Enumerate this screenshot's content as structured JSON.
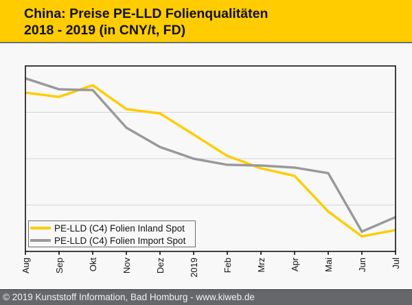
{
  "header": {
    "title_line1": "China: Preise PE-LLD Folienqualitäten",
    "title_line2": "2018 - 2019 (in CNY/t, FD)",
    "background_color": "#ffcc00"
  },
  "footer": {
    "text": "© 2019 Kunststoff Information, Bad Homburg - www.kiweb.de"
  },
  "chart_data": {
    "type": "line",
    "title": "China: Preise PE-LLD Folienqualitäten 2018 - 2019 (in CNY/t, FD)",
    "xlabel": "",
    "ylabel": "",
    "y_unit_note": "No y-axis tick labels shown; values are relative (0 = plot bottom, 100 = plot top)",
    "ylim": [
      0,
      100
    ],
    "y_gridlines": [
      25,
      50,
      75
    ],
    "grid": true,
    "legend_position": "bottom-left",
    "categories": [
      "Aug",
      "Sep",
      "Okt",
      "Nov",
      "Dez",
      "2019",
      "Feb",
      "Mrz",
      "Apr",
      "Mai",
      "Jun",
      "Jul"
    ],
    "series": [
      {
        "name": "PE-LLD (C4) Folien Inland Spot",
        "color": "#ffcc00",
        "values": [
          85.6,
          83.3,
          89.6,
          76.7,
          74.4,
          63.0,
          51.5,
          44.8,
          40.7,
          21.5,
          8.1,
          11.5
        ]
      },
      {
        "name": "PE-LLD (C4) Folien Import Spot",
        "color": "#999999",
        "values": [
          93.3,
          87.4,
          87.0,
          66.7,
          56.3,
          50.0,
          46.7,
          46.3,
          45.2,
          42.2,
          10.7,
          18.5
        ]
      }
    ]
  }
}
